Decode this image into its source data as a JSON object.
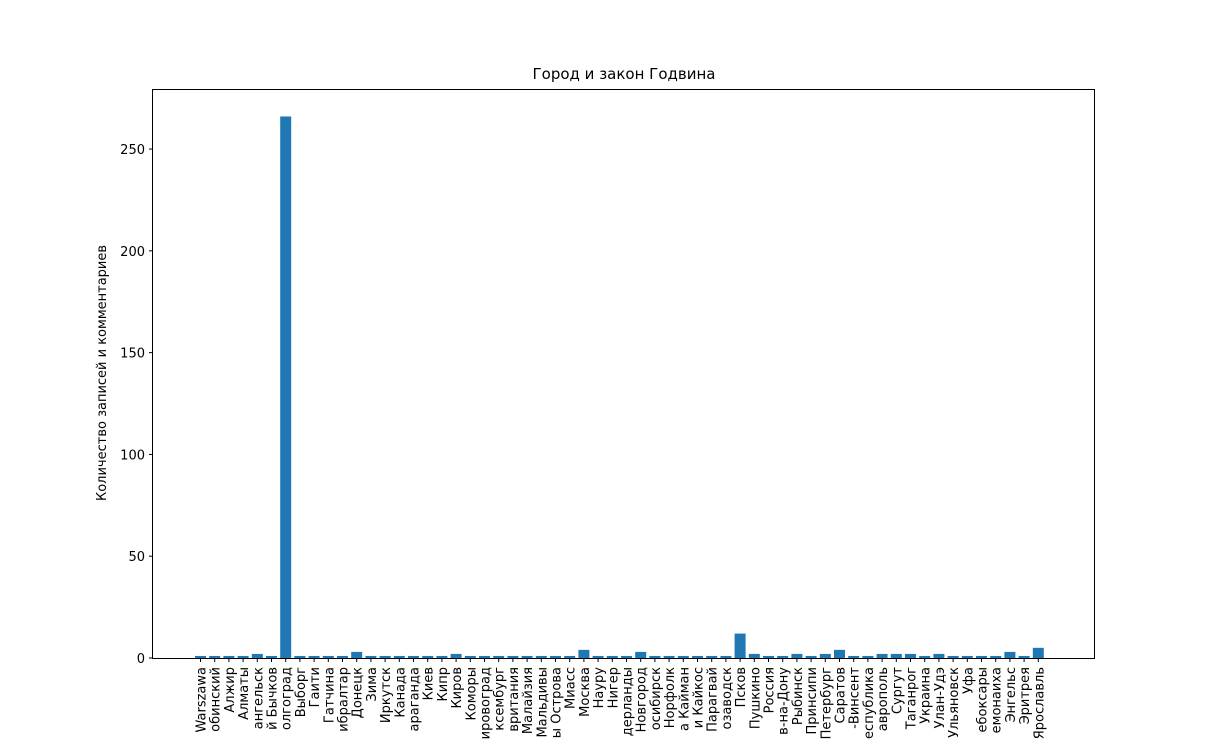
{
  "chart_data": {
    "type": "bar",
    "title": "Город и закон Годвина",
    "xlabel": "",
    "ylabel": "Количество записей и комментариев",
    "ylim": [
      0,
      279
    ],
    "yticks": [
      0,
      50,
      100,
      150,
      200,
      250
    ],
    "grid": false,
    "bar_color": "#1f77b4",
    "categories": [
      "Warszawa",
      "обинский",
      "Алжир",
      "Алматы",
      "ангельск",
      "й Бычков",
      "олгоград",
      "Выборг",
      "Гаити",
      "Гатчина",
      "ибралтар",
      "Донецк",
      "Зима",
      "Иркутск",
      "Канада",
      "араганда",
      "Киев",
      "Кипр",
      "Киров",
      "Коморы",
      "ировоград",
      "ксембург",
      "вритания",
      "Малайзия",
      "Мальдивы",
      "ы Острова",
      "Миасс",
      "Москва",
      "Науру",
      "Нигер",
      "дерланды",
      "Новгород",
      "осибирск",
      "Норфолк",
      "а Кайман",
      "и Кайкос",
      "Парагвай",
      "озаводск",
      "Псков",
      "Пушкино",
      "Россия",
      "в-на-Дону",
      "Рыбинск",
      "Принсипи",
      "Петербург",
      "Саратов",
      "-Винсент",
      "еспублика",
      "аврополь",
      "Сургут",
      "Таганрог",
      "Украина",
      "Улан-Удэ",
      "Ульяновск",
      "Уфа",
      "ебоксары",
      "емонаиха",
      "Энгельс",
      "Эритрея",
      "Ярославль"
    ],
    "values": [
      1,
      1,
      1,
      1,
      2,
      1,
      266,
      1,
      1,
      1,
      1,
      3,
      1,
      1,
      1,
      1,
      1,
      1,
      2,
      1,
      1,
      1,
      1,
      1,
      1,
      1,
      1,
      4,
      1,
      1,
      1,
      3,
      1,
      1,
      1,
      1,
      1,
      1,
      12,
      2,
      1,
      1,
      2,
      1,
      2,
      4,
      1,
      1,
      2,
      2,
      2,
      1,
      2,
      1,
      1,
      1,
      1,
      3,
      1,
      5
    ]
  }
}
